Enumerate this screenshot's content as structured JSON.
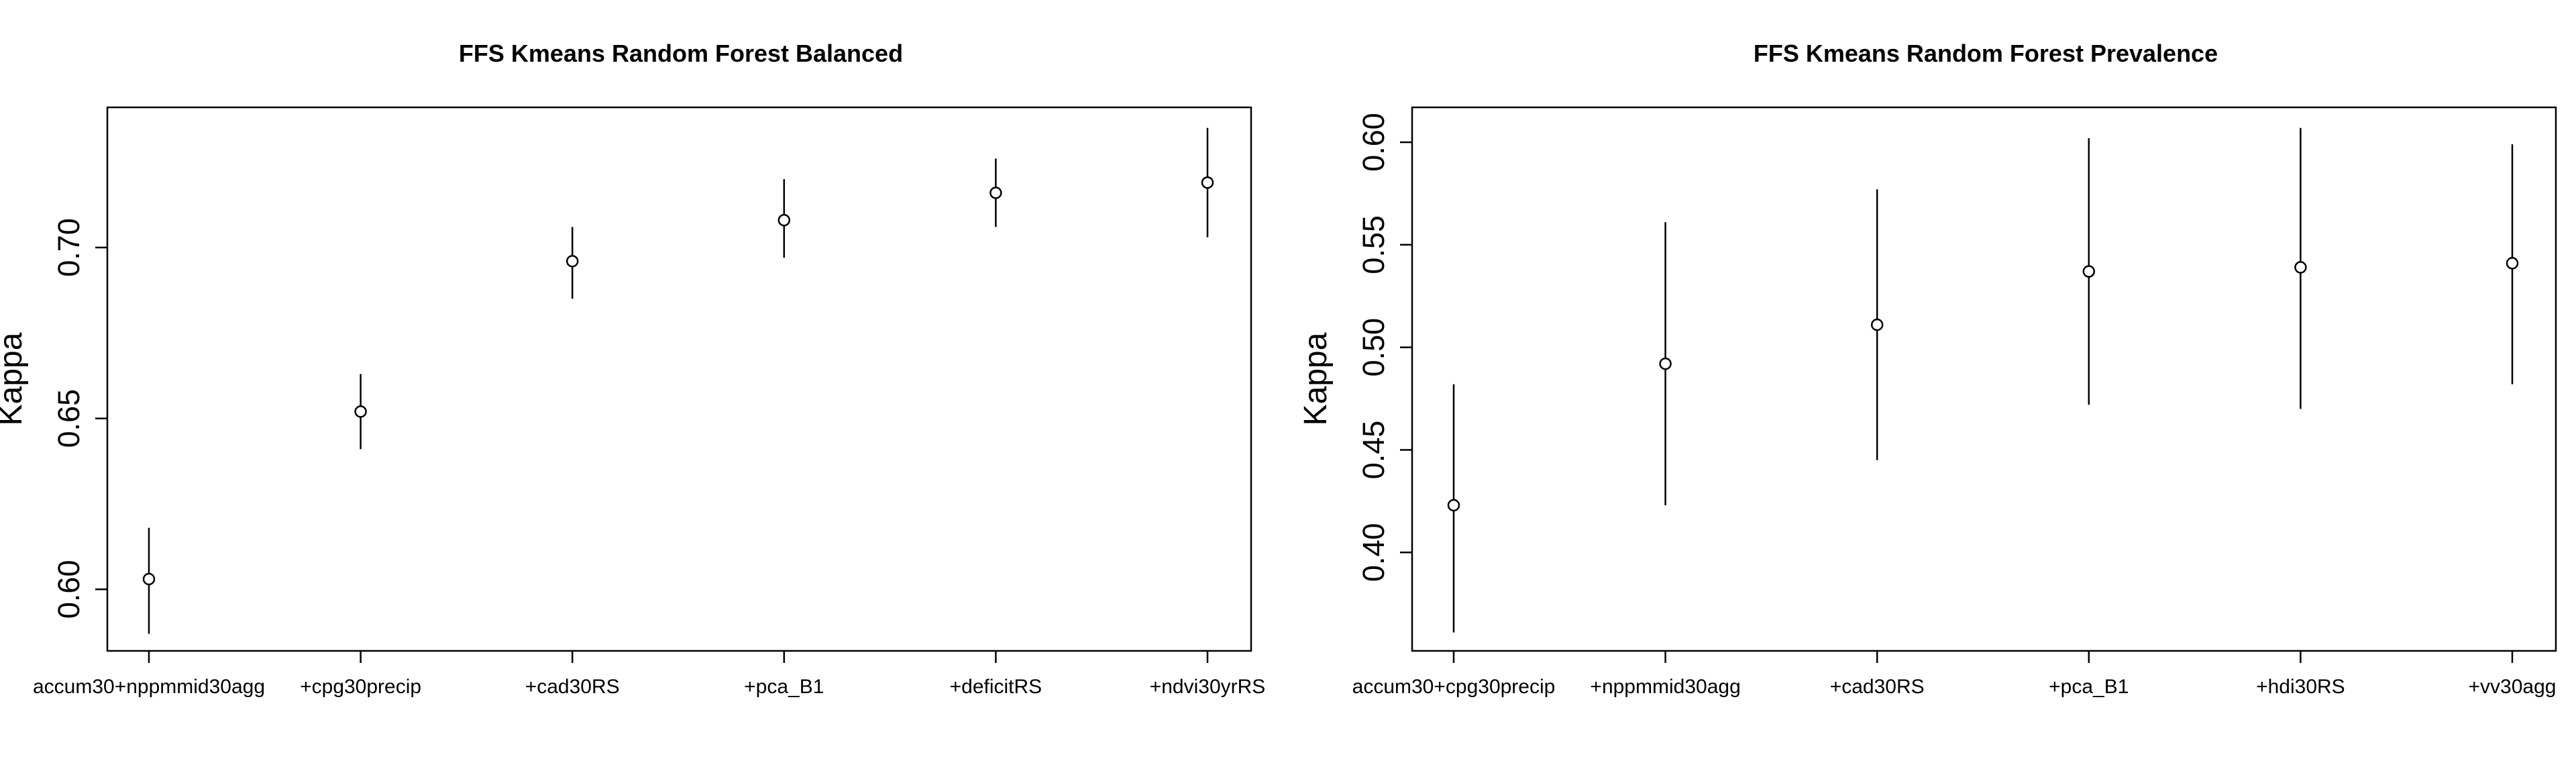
{
  "chart_data": [
    {
      "type": "scatter",
      "title": "FFS Kmeans Random Forest Balanced",
      "xlabel": "",
      "ylabel": "Kappa",
      "categories": [
        "accum30+nppmmid30agg",
        "+cpg30precip",
        "+cad30RS",
        "+pca_B1",
        "+deficitRS",
        "+ndvi30yrRS"
      ],
      "values": [
        0.603,
        0.652,
        0.696,
        0.708,
        0.716,
        0.719
      ],
      "lower": [
        0.587,
        0.641,
        0.685,
        0.697,
        0.706,
        0.703
      ],
      "upper": [
        0.618,
        0.663,
        0.706,
        0.72,
        0.726,
        0.735
      ],
      "yticks": [
        0.6,
        0.65,
        0.7
      ],
      "ytick_labels": [
        "0.60",
        "0.65",
        "0.70"
      ],
      "ylim": [
        0.582,
        0.741
      ],
      "grid": false
    },
    {
      "type": "scatter",
      "title": "FFS Kmeans Random Forest Prevalence",
      "xlabel": "",
      "ylabel": "Kappa",
      "categories": [
        "accum30+cpg30precip",
        "+nppmmid30agg",
        "+cad30RS",
        "+pca_B1",
        "+hdi30RS",
        "+vv30agg"
      ],
      "values": [
        0.423,
        0.492,
        0.511,
        0.537,
        0.539,
        0.541
      ],
      "lower": [
        0.361,
        0.423,
        0.445,
        0.472,
        0.47,
        0.482
      ],
      "upper": [
        0.482,
        0.561,
        0.577,
        0.602,
        0.607,
        0.599
      ],
      "yticks": [
        0.4,
        0.45,
        0.5,
        0.55,
        0.6
      ],
      "ytick_labels": [
        "0.40",
        "0.45",
        "0.50",
        "0.55",
        "0.60"
      ],
      "ylim": [
        0.352,
        0.617
      ],
      "grid": false
    }
  ]
}
